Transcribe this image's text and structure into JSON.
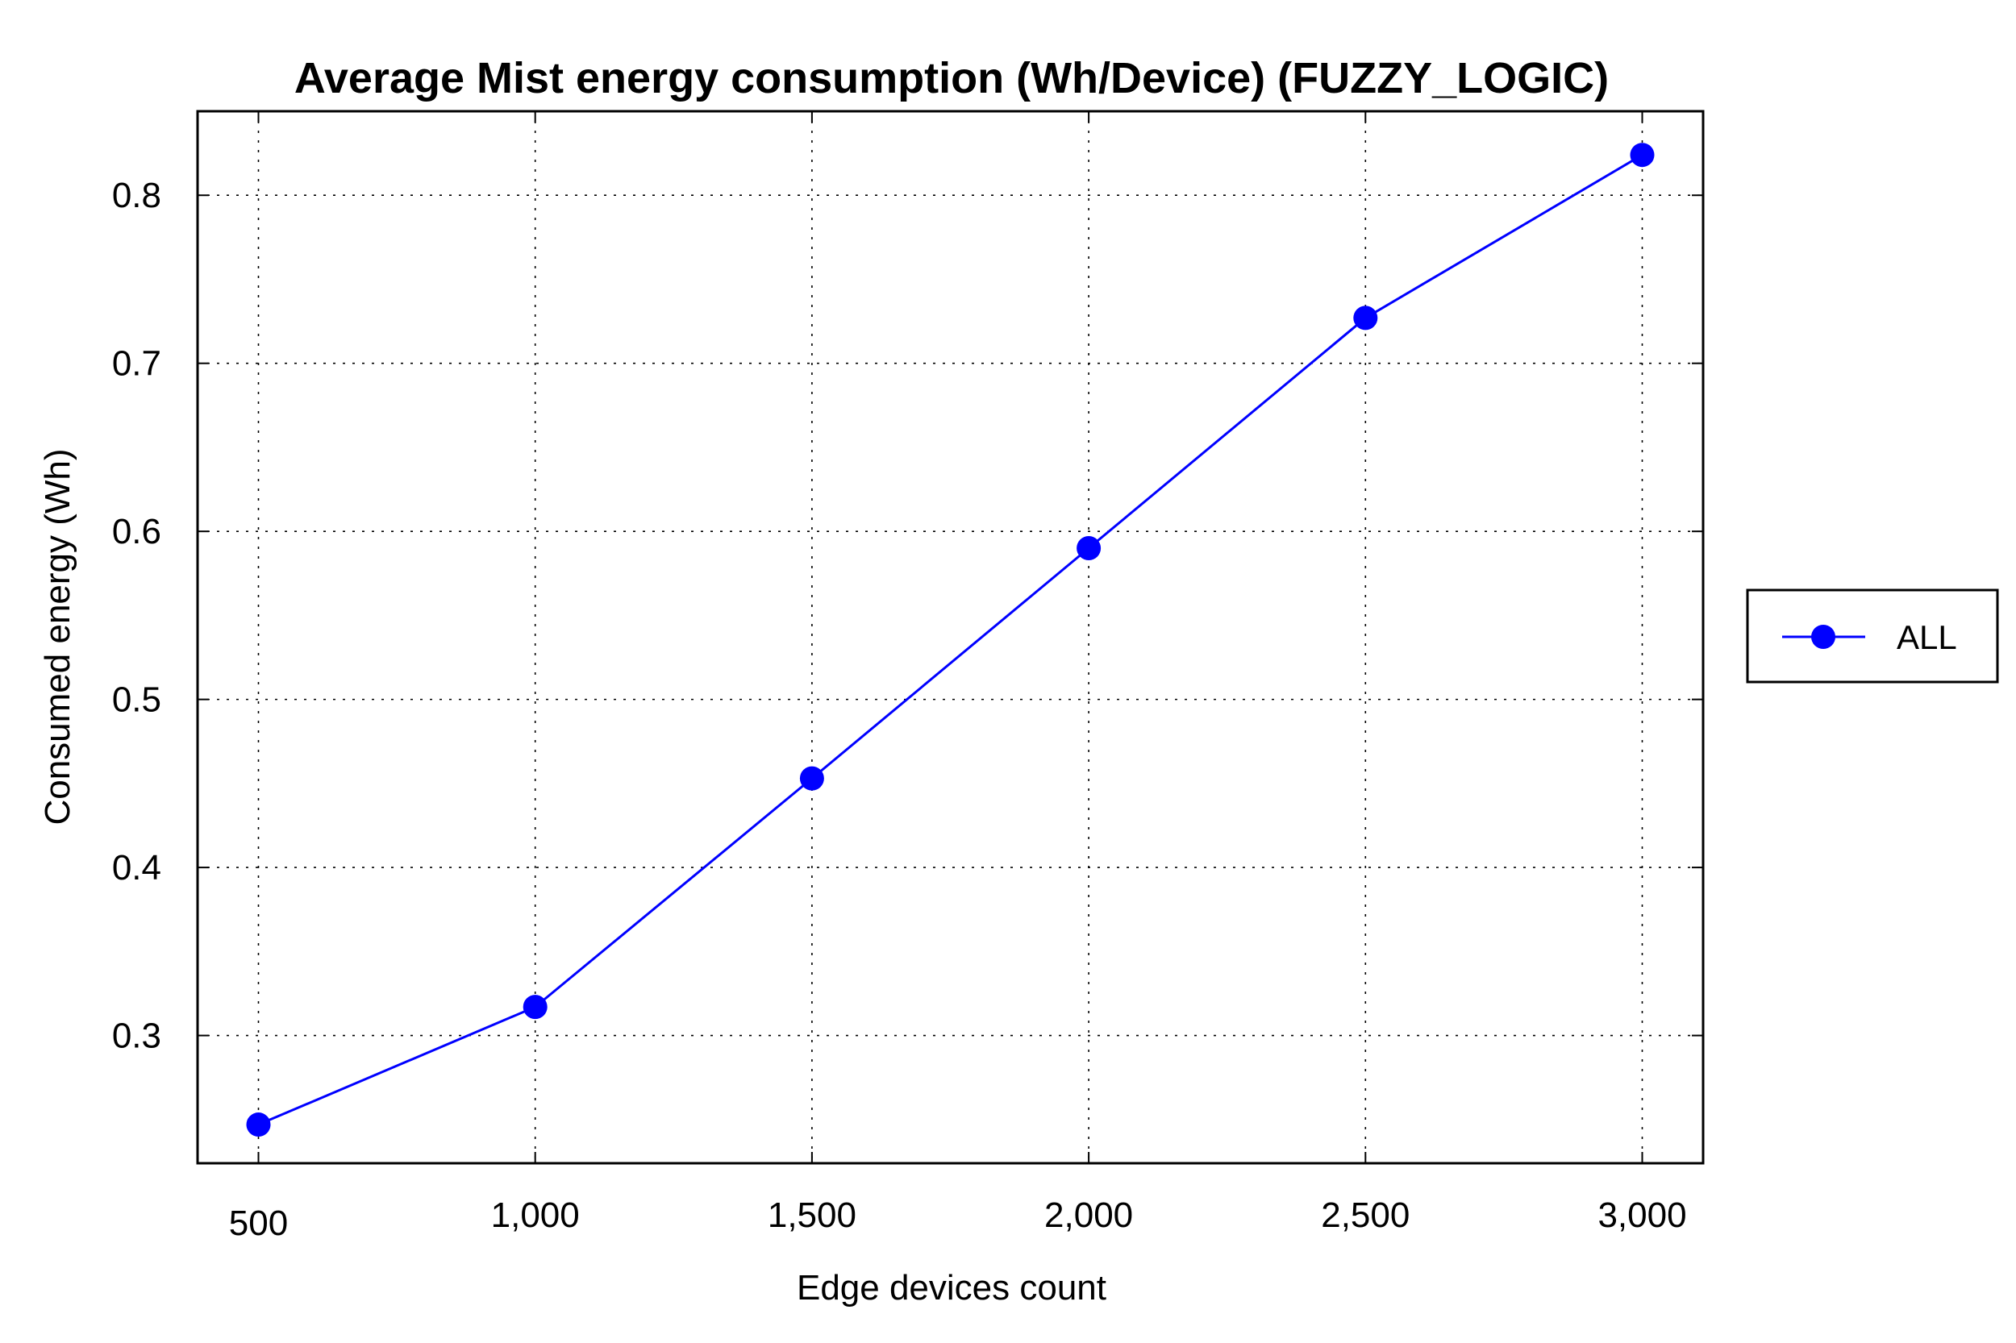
{
  "chart_data": {
    "type": "line",
    "title": "Average Mist energy consumption (Wh/Device) (FUZZY_LOGIC)",
    "xlabel": "Edge devices count",
    "ylabel": "Consumed energy (Wh)",
    "xlim": [
      390,
      3110
    ],
    "ylim": [
      0.224,
      0.85
    ],
    "x": [
      500,
      1000,
      1500,
      2000,
      2500,
      3000
    ],
    "xtick_labels": [
      "500",
      "1,000",
      "1,500",
      "2,000",
      "2,500",
      "3,000"
    ],
    "yticks": [
      0.3,
      0.4,
      0.5,
      0.6,
      0.7,
      0.8
    ],
    "ytick_labels": [
      "0.3",
      "0.4",
      "0.5",
      "0.6",
      "0.7",
      "0.8"
    ],
    "grid": true,
    "legend_position": "right",
    "series": [
      {
        "name": "ALL",
        "color": "#0000ff",
        "marker": "circle",
        "values": [
          0.247,
          0.317,
          0.453,
          0.59,
          0.727,
          0.824
        ]
      }
    ]
  }
}
